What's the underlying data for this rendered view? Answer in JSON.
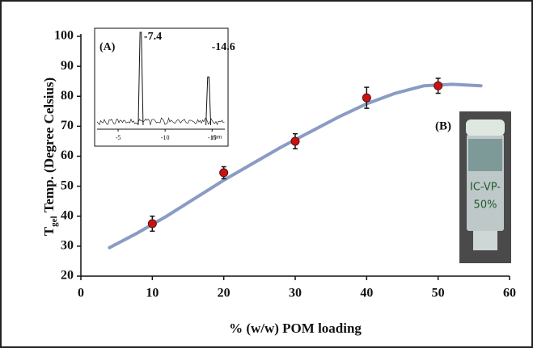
{
  "chart_data": {
    "type": "scatter",
    "xlabel": "% (w/w) POM loading",
    "ylabel": {
      "main": "T",
      "sub": "gel",
      "rest": "Temp. (Degree Celsius)"
    },
    "xlim": [
      0,
      60
    ],
    "xticks": [
      0,
      10,
      20,
      30,
      40,
      50,
      60
    ],
    "ylim": [
      20,
      100
    ],
    "yticks": [
      20,
      30,
      40,
      50,
      60,
      70,
      80,
      90,
      100
    ],
    "points": {
      "color": "#cc1111",
      "x": [
        10,
        20,
        30,
        40,
        50
      ],
      "values": [
        37.5,
        54.5,
        65,
        79.5,
        83.5
      ],
      "errors": [
        2.5,
        2,
        2.5,
        3.5,
        2.5
      ]
    },
    "fit": {
      "color": "#8a9cc4",
      "x": [
        4,
        8,
        12,
        16,
        20,
        24,
        28,
        32,
        36,
        40,
        44,
        48,
        52,
        56
      ],
      "values": [
        29.5,
        34.5,
        40,
        46,
        52,
        57.5,
        63,
        68,
        73,
        77.5,
        81,
        83.5,
        84,
        83.5
      ]
    },
    "inset_a": {
      "label": "(A)",
      "xlim": [
        -2.5,
        -16.7
      ],
      "xticks": [
        -5,
        -10,
        -15
      ],
      "xunit": "ppm",
      "peaks": [
        -7.4,
        -14.6
      ],
      "intensity": [
        100,
        52
      ]
    },
    "inset_b": {
      "label": "(B)",
      "texts": [
        "IC-VP-",
        "50%"
      ]
    }
  }
}
